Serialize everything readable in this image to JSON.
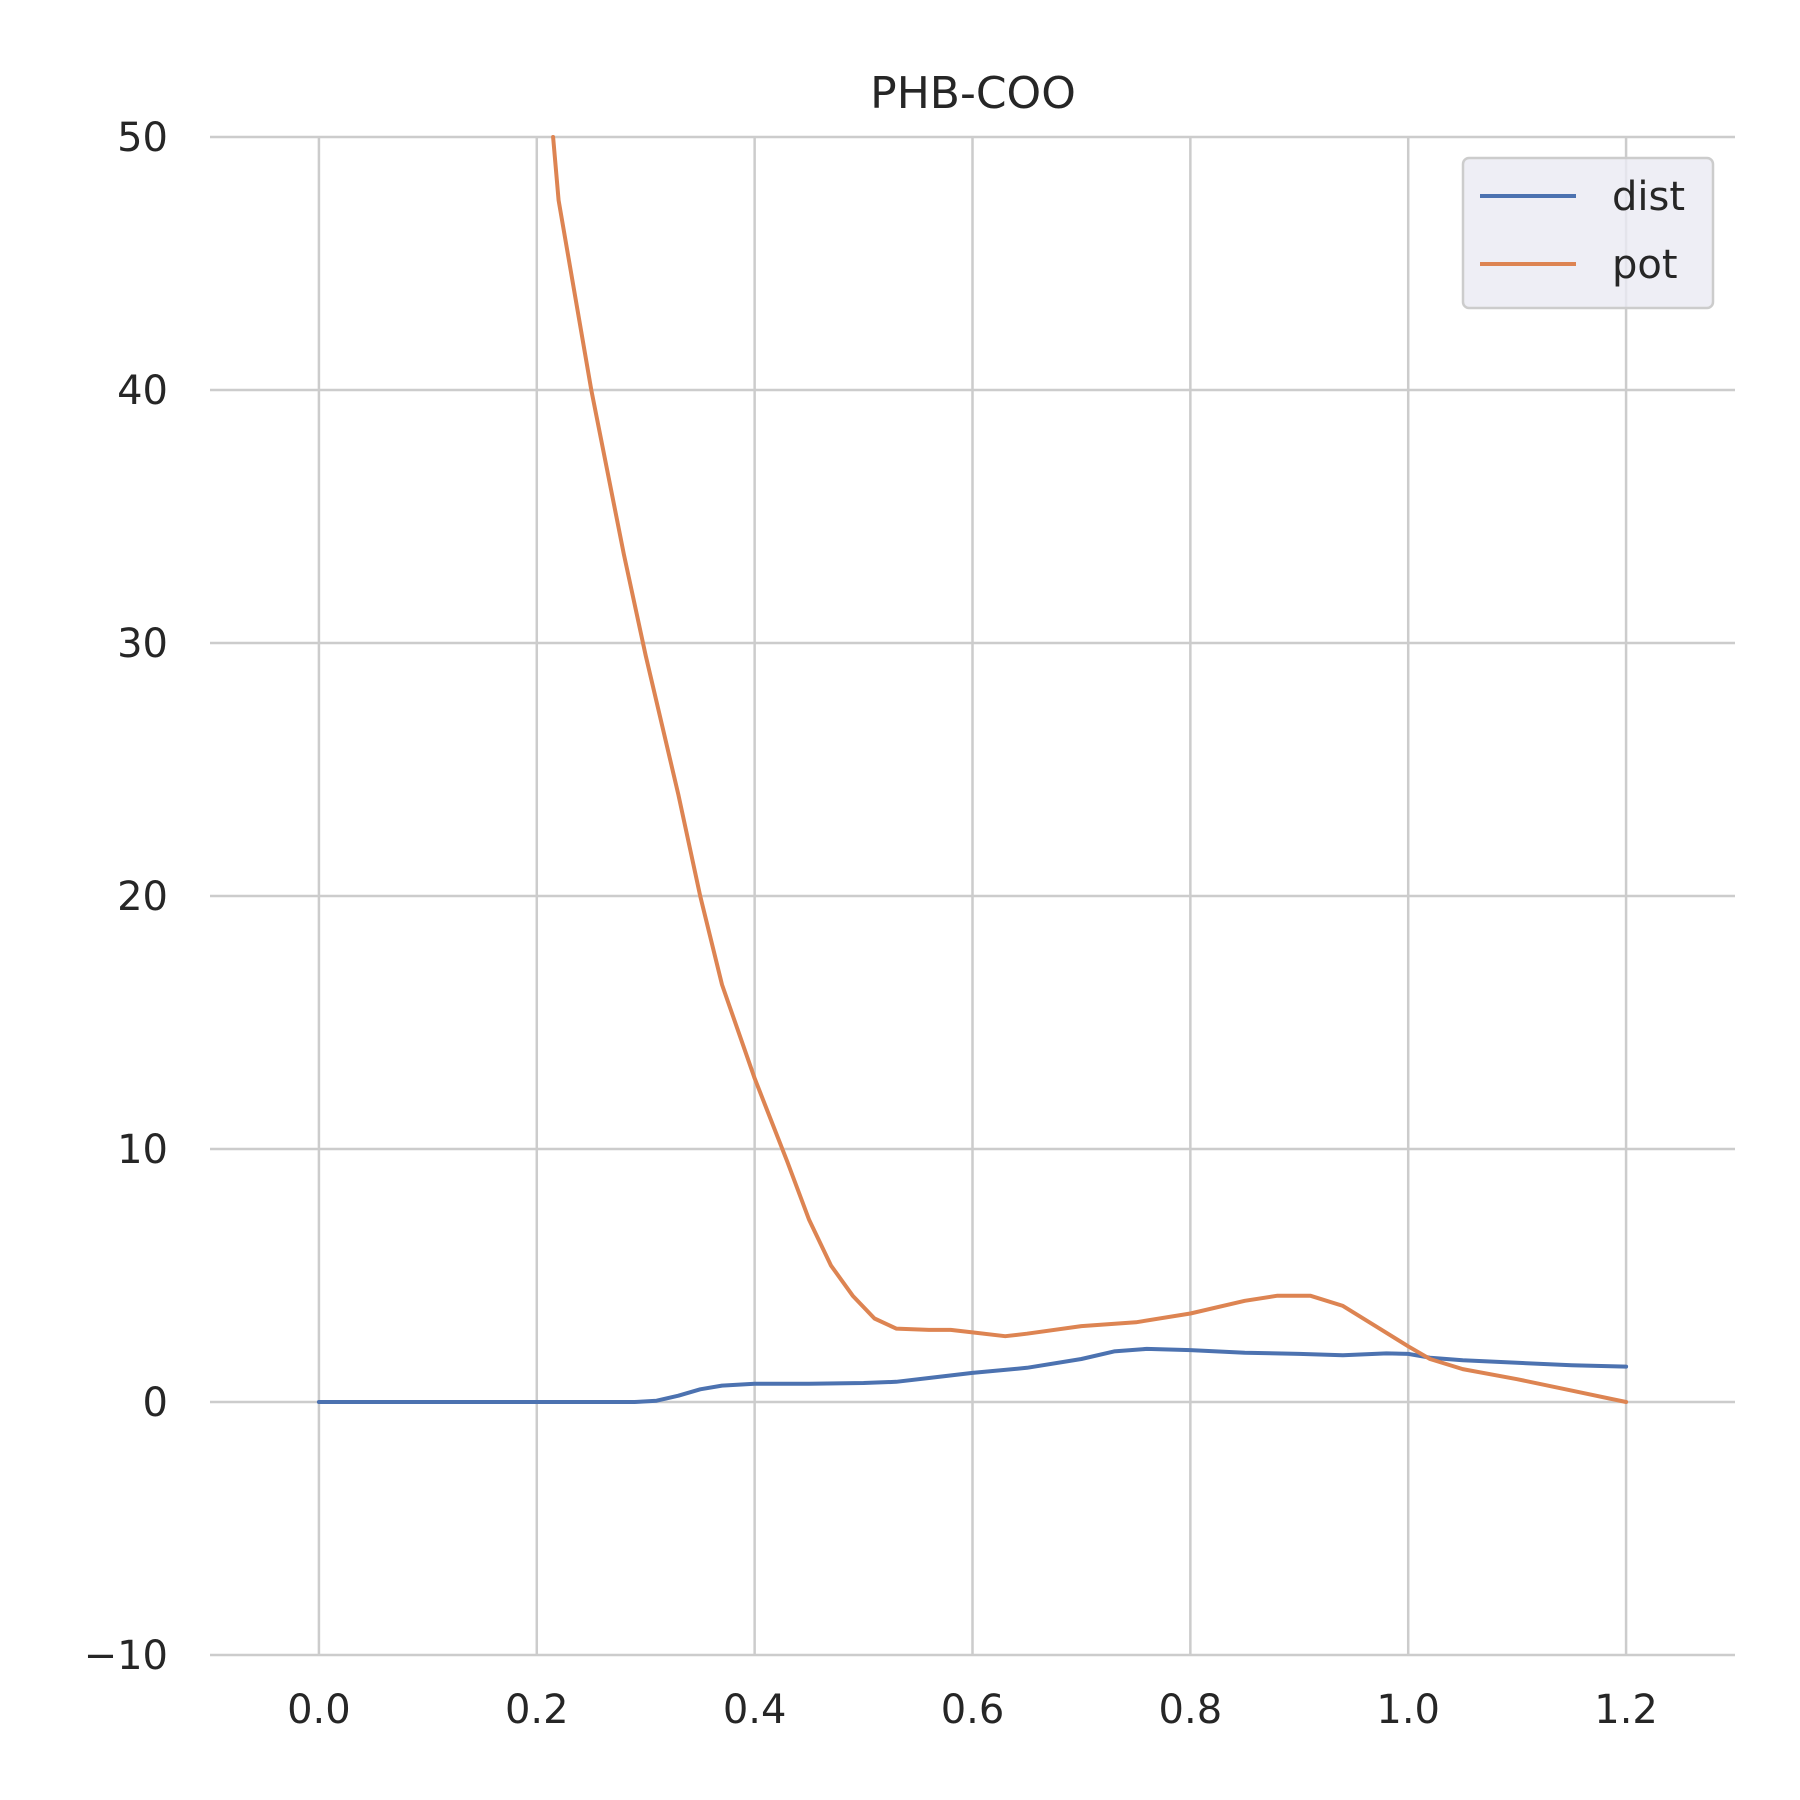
{
  "chart_data": {
    "type": "line",
    "title": "PHB-COO",
    "xlabel": "",
    "ylabel": "",
    "xlim": [
      -0.1,
      1.3
    ],
    "ylim": [
      -10,
      50
    ],
    "xticks": [
      0.0,
      0.2,
      0.4,
      0.6,
      0.8,
      1.0,
      1.2
    ],
    "xtick_labels": [
      "0.0",
      "0.2",
      "0.4",
      "0.6",
      "0.8",
      "1.0",
      "1.2"
    ],
    "yticks": [
      -10,
      0,
      10,
      20,
      30,
      40,
      50
    ],
    "ytick_labels": [
      "−10",
      "0",
      "10",
      "20",
      "30",
      "40",
      "50"
    ],
    "grid": true,
    "legend": "top-right",
    "series": [
      {
        "name": "dist",
        "color": "#4c72b0",
        "points": [
          [
            0.0,
            0
          ],
          [
            0.1,
            0
          ],
          [
            0.2,
            0
          ],
          [
            0.29,
            0
          ],
          [
            0.31,
            0.05
          ],
          [
            0.33,
            0.25
          ],
          [
            0.35,
            0.5
          ],
          [
            0.37,
            0.65
          ],
          [
            0.4,
            0.72
          ],
          [
            0.45,
            0.72
          ],
          [
            0.5,
            0.75
          ],
          [
            0.53,
            0.8
          ],
          [
            0.56,
            0.95
          ],
          [
            0.6,
            1.15
          ],
          [
            0.65,
            1.35
          ],
          [
            0.7,
            1.7
          ],
          [
            0.73,
            2.0
          ],
          [
            0.76,
            2.1
          ],
          [
            0.8,
            2.05
          ],
          [
            0.85,
            1.95
          ],
          [
            0.9,
            1.9
          ],
          [
            0.94,
            1.85
          ],
          [
            0.98,
            1.92
          ],
          [
            1.0,
            1.9
          ],
          [
            1.02,
            1.75
          ],
          [
            1.05,
            1.65
          ],
          [
            1.1,
            1.55
          ],
          [
            1.15,
            1.45
          ],
          [
            1.2,
            1.4
          ]
        ]
      },
      {
        "name": "pot",
        "color": "#dd8452",
        "points": [
          [
            0.215,
            50
          ],
          [
            0.22,
            47.5
          ],
          [
            0.25,
            40
          ],
          [
            0.28,
            33.5
          ],
          [
            0.3,
            29.5
          ],
          [
            0.33,
            24
          ],
          [
            0.35,
            20
          ],
          [
            0.37,
            16.5
          ],
          [
            0.4,
            12.8
          ],
          [
            0.43,
            9.5
          ],
          [
            0.45,
            7.2
          ],
          [
            0.47,
            5.4
          ],
          [
            0.49,
            4.2
          ],
          [
            0.51,
            3.3
          ],
          [
            0.53,
            2.9
          ],
          [
            0.56,
            2.85
          ],
          [
            0.58,
            2.85
          ],
          [
            0.6,
            2.75
          ],
          [
            0.63,
            2.6
          ],
          [
            0.65,
            2.7
          ],
          [
            0.7,
            3.0
          ],
          [
            0.75,
            3.15
          ],
          [
            0.8,
            3.5
          ],
          [
            0.85,
            4.0
          ],
          [
            0.88,
            4.2
          ],
          [
            0.91,
            4.2
          ],
          [
            0.94,
            3.8
          ],
          [
            0.97,
            3.0
          ],
          [
            1.0,
            2.2
          ],
          [
            1.02,
            1.7
          ],
          [
            1.05,
            1.3
          ],
          [
            1.1,
            0.9
          ],
          [
            1.15,
            0.45
          ],
          [
            1.2,
            0.0
          ]
        ]
      }
    ]
  }
}
